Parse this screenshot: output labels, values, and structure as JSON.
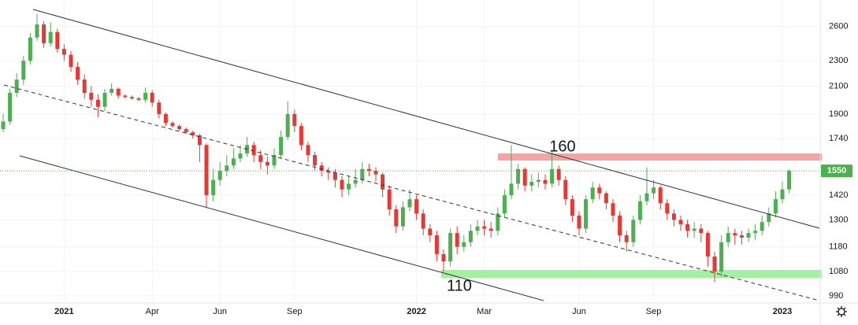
{
  "chart_data": {
    "type": "candlestick",
    "log_scale": true,
    "grid": true,
    "up_color": "#4caf50",
    "down_color": "#e53935",
    "ylim": [
      965,
      2860
    ],
    "yticks": [
      990,
      1080,
      1180,
      1300,
      1420,
      1740,
      1900,
      2100,
      2300,
      2600
    ],
    "last_price": 1550,
    "last_price_color": "#4caf50",
    "annotations": [
      "160",
      "110"
    ],
    "categories": [
      null,
      null,
      null,
      null,
      null,
      null,
      null,
      null,
      null,
      "2021",
      null,
      null,
      null,
      null,
      null,
      null,
      null,
      null,
      null,
      null,
      null,
      null,
      "Apr",
      null,
      null,
      null,
      null,
      null,
      null,
      null,
      null,
      null,
      "Jun",
      null,
      null,
      null,
      null,
      null,
      null,
      null,
      null,
      null,
      null,
      "Sep",
      null,
      null,
      null,
      null,
      null,
      null,
      null,
      null,
      null,
      null,
      null,
      null,
      null,
      null,
      null,
      null,
      null,
      "2022",
      null,
      null,
      null,
      null,
      null,
      null,
      null,
      null,
      null,
      "Mar",
      null,
      null,
      null,
      null,
      null,
      null,
      null,
      null,
      null,
      null,
      null,
      null,
      null,
      "Jun",
      null,
      null,
      null,
      null,
      null,
      null,
      null,
      null,
      null,
      null,
      "Sep",
      null,
      null,
      null,
      null,
      null,
      null,
      null,
      null,
      null,
      null,
      null,
      null,
      null,
      null,
      null,
      null,
      null,
      null,
      "2023",
      null
    ],
    "open": [
      1800,
      1850,
      2050,
      2150,
      2300,
      2500,
      2620,
      2450,
      2550,
      2400,
      2350,
      2250,
      2150,
      2050,
      2000,
      1950,
      2050,
      2080,
      2030,
      2020,
      2010,
      2000,
      2050,
      1980,
      1900,
      1840,
      1820,
      1800,
      1780,
      1760,
      1700,
      1420,
      1500,
      1550,
      1580,
      1620,
      1650,
      1700,
      1640,
      1600,
      1580,
      1640,
      1750,
      1900,
      1820,
      1700,
      1640,
      1580,
      1550,
      1540,
      1500,
      1450,
      1480,
      1500,
      1560,
      1550,
      1530,
      1450,
      1350,
      1270,
      1360,
      1400,
      1330,
      1260,
      1230,
      1150,
      1120,
      1240,
      1180,
      1200,
      1250,
      1270,
      1260,
      1250,
      1330,
      1420,
      1480,
      1560,
      1470,
      1490,
      1500,
      1480,
      1560,
      1500,
      1400,
      1320,
      1260,
      1400,
      1460,
      1430,
      1380,
      1320,
      1230,
      1200,
      1300,
      1390,
      1430,
      1460,
      1380,
      1330,
      1300,
      1280,
      1250,
      1260,
      1240,
      1140,
      1080,
      1200,
      1240,
      1230,
      1220,
      1240,
      1250,
      1290,
      1330,
      1400,
      1450
    ],
    "high": [
      1900,
      2080,
      2200,
      2340,
      2540,
      2720,
      2650,
      2640,
      2580,
      2440,
      2380,
      2290,
      2190,
      2100,
      2040,
      2080,
      2120,
      2090,
      2040,
      2030,
      2020,
      2090,
      2070,
      2000,
      1910,
      1850,
      1830,
      1810,
      1790,
      1770,
      1710,
      1560,
      1600,
      1640,
      1680,
      1700,
      1750,
      1720,
      1670,
      1630,
      1680,
      1790,
      1990,
      1930,
      1840,
      1720,
      1660,
      1600,
      1570,
      1560,
      1520,
      1520,
      1560,
      1600,
      1590,
      1570,
      1540,
      1470,
      1370,
      1390,
      1450,
      1420,
      1350,
      1280,
      1250,
      1170,
      1260,
      1270,
      1230,
      1280,
      1300,
      1300,
      1290,
      1360,
      1450,
      1700,
      1590,
      1570,
      1530,
      1540,
      1530,
      1660,
      1580,
      1520,
      1420,
      1340,
      1420,
      1490,
      1480,
      1440,
      1400,
      1340,
      1250,
      1320,
      1420,
      1570,
      1500,
      1470,
      1400,
      1350,
      1320,
      1300,
      1290,
      1280,
      1250,
      1160,
      1230,
      1270,
      1260,
      1250,
      1260,
      1280,
      1320,
      1360,
      1440,
      1490,
      1560
    ],
    "low": [
      1780,
      1830,
      2020,
      2110,
      2270,
      2470,
      2410,
      2420,
      2370,
      2300,
      2210,
      2110,
      2010,
      1950,
      1880,
      1920,
      2030,
      2010,
      2010,
      2000,
      1990,
      1980,
      1950,
      1870,
      1820,
      1810,
      1790,
      1770,
      1740,
      1600,
      1360,
      1390,
      1470,
      1520,
      1560,
      1600,
      1630,
      1600,
      1560,
      1530,
      1560,
      1620,
      1730,
      1780,
      1670,
      1600,
      1550,
      1520,
      1500,
      1460,
      1410,
      1420,
      1460,
      1480,
      1520,
      1490,
      1410,
      1320,
      1240,
      1250,
      1340,
      1300,
      1230,
      1200,
      1120,
      1080,
      1100,
      1150,
      1160,
      1180,
      1230,
      1230,
      1220,
      1230,
      1310,
      1400,
      1450,
      1440,
      1440,
      1460,
      1450,
      1460,
      1470,
      1370,
      1290,
      1230,
      1240,
      1380,
      1400,
      1350,
      1290,
      1200,
      1160,
      1180,
      1280,
      1370,
      1400,
      1350,
      1300,
      1270,
      1250,
      1220,
      1220,
      1200,
      1100,
      1040,
      1060,
      1180,
      1190,
      1190,
      1200,
      1210,
      1230,
      1270,
      1310,
      1380,
      1430
    ],
    "close": [
      1850,
      2050,
      2150,
      2300,
      2500,
      2620,
      2450,
      2550,
      2400,
      2350,
      2250,
      2150,
      2050,
      2000,
      1950,
      2050,
      2080,
      2030,
      2020,
      2010,
      2000,
      2050,
      1980,
      1900,
      1840,
      1820,
      1800,
      1780,
      1760,
      1700,
      1420,
      1500,
      1550,
      1580,
      1620,
      1650,
      1700,
      1640,
      1600,
      1580,
      1640,
      1750,
      1900,
      1820,
      1700,
      1640,
      1580,
      1550,
      1540,
      1500,
      1450,
      1480,
      1500,
      1560,
      1550,
      1530,
      1450,
      1350,
      1270,
      1360,
      1400,
      1330,
      1260,
      1230,
      1150,
      1120,
      1240,
      1180,
      1200,
      1250,
      1270,
      1260,
      1250,
      1330,
      1420,
      1480,
      1560,
      1470,
      1490,
      1500,
      1480,
      1560,
      1500,
      1400,
      1320,
      1260,
      1400,
      1460,
      1430,
      1380,
      1320,
      1230,
      1200,
      1300,
      1390,
      1430,
      1460,
      1380,
      1330,
      1300,
      1280,
      1250,
      1260,
      1240,
      1140,
      1080,
      1200,
      1240,
      1230,
      1220,
      1240,
      1250,
      1290,
      1330,
      1400,
      1450,
      1550
    ]
  }
}
